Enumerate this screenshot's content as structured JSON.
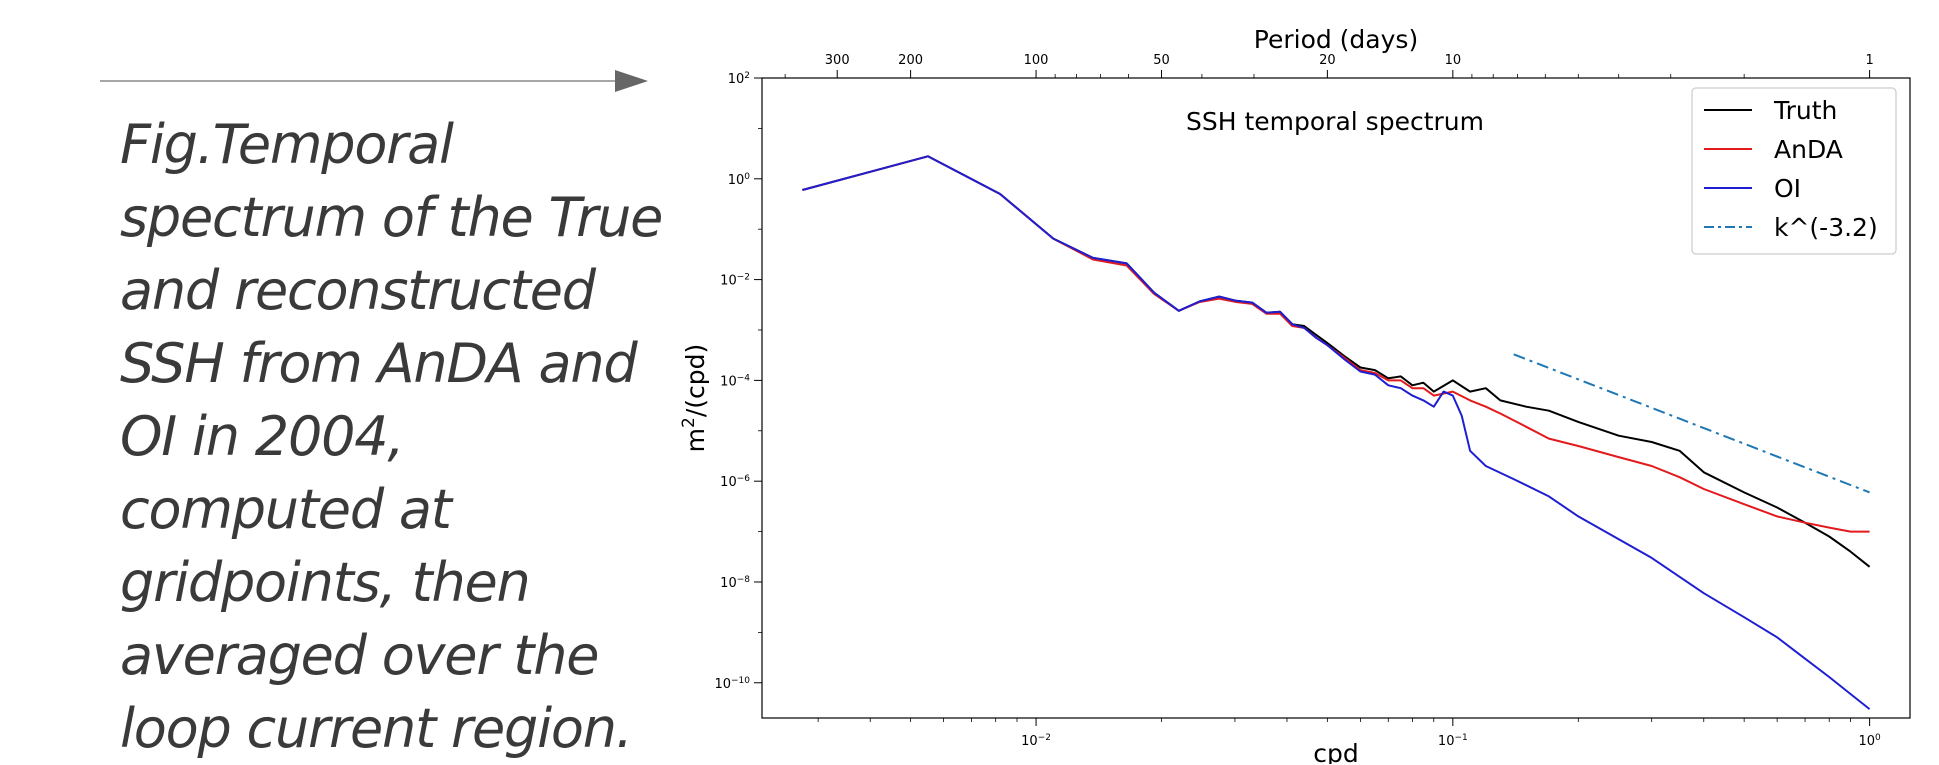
{
  "caption": {
    "text": "Fig.Temporal spectrum of the  True and reconstructed SSH from AnDA and OI  in 2004, computed at gridpoints,  then averaged over the loop current region."
  },
  "chart_data": {
    "type": "line",
    "title": "SSH temporal spectrum",
    "xlabel": "cpd",
    "ylabel": "m²/(cpd)",
    "top_xlabel": "Period (days)",
    "xscale": "log",
    "yscale": "log",
    "xlim": [
      0.0022,
      1.25
    ],
    "ylim": [
      2e-11,
      100
    ],
    "x_ticks": [
      {
        "value": 0.01,
        "label_base": "10",
        "label_exp": "−2"
      },
      {
        "value": 0.1,
        "label_base": "10",
        "label_exp": "−1"
      },
      {
        "value": 1,
        "label_base": "10",
        "label_exp": "0"
      }
    ],
    "y_ticks": [
      {
        "value": 100,
        "label_base": "10",
        "label_exp": "2"
      },
      {
        "value": 1,
        "label_base": "10",
        "label_exp": "0"
      },
      {
        "value": 0.01,
        "label_base": "10",
        "label_exp": "−2"
      },
      {
        "value": 0.0001,
        "label_base": "10",
        "label_exp": "−4"
      },
      {
        "value": 1e-06,
        "label_base": "10",
        "label_exp": "−6"
      },
      {
        "value": 1e-08,
        "label_base": "10",
        "label_exp": "−8"
      },
      {
        "value": 1e-10,
        "label_base": "10",
        "label_exp": "−10"
      }
    ],
    "top_ticks": [
      {
        "period": 300,
        "label": "300"
      },
      {
        "period": 200,
        "label": "200"
      },
      {
        "period": 100,
        "label": "100"
      },
      {
        "period": 50,
        "label": "50"
      },
      {
        "period": 20,
        "label": "20"
      },
      {
        "period": 10,
        "label": "10"
      },
      {
        "period": 1,
        "label": "1"
      }
    ],
    "legend_position": "top-right",
    "grid": false,
    "series": [
      {
        "name": "Truth",
        "color": "#000000",
        "style": "solid",
        "x": [
          0.00275,
          0.0055,
          0.0082,
          0.011,
          0.0137,
          0.0165,
          0.0192,
          0.022,
          0.0247,
          0.0275,
          0.0302,
          0.033,
          0.0357,
          0.0385,
          0.0412,
          0.044,
          0.047,
          0.05,
          0.055,
          0.06,
          0.065,
          0.07,
          0.075,
          0.08,
          0.085,
          0.09,
          0.1,
          0.11,
          0.12,
          0.13,
          0.15,
          0.17,
          0.2,
          0.25,
          0.3,
          0.35,
          0.4,
          0.5,
          0.6,
          0.7,
          0.8,
          0.9,
          1.0
        ],
        "y": [
          0.6,
          2.8,
          0.5,
          0.065,
          0.027,
          0.021,
          0.0055,
          0.0024,
          0.0037,
          0.0046,
          0.0038,
          0.0035,
          0.0022,
          0.0023,
          0.0013,
          0.0012,
          0.0008,
          0.00055,
          0.0003,
          0.00018,
          0.00016,
          0.00011,
          0.00012,
          8e-05,
          9e-05,
          6e-05,
          0.0001,
          6e-05,
          7e-05,
          4e-05,
          3e-05,
          2.5e-05,
          1.5e-05,
          8e-06,
          6e-06,
          4e-06,
          1.5e-06,
          6e-07,
          3e-07,
          1.5e-07,
          8e-08,
          4e-08,
          2e-08
        ]
      },
      {
        "name": "AnDA",
        "color": "#e31a1c",
        "style": "solid",
        "x": [
          0.00275,
          0.0055,
          0.0082,
          0.011,
          0.0137,
          0.0165,
          0.0192,
          0.022,
          0.0247,
          0.0275,
          0.0302,
          0.033,
          0.0357,
          0.0385,
          0.0412,
          0.044,
          0.047,
          0.05,
          0.055,
          0.06,
          0.065,
          0.07,
          0.075,
          0.08,
          0.085,
          0.09,
          0.1,
          0.11,
          0.12,
          0.13,
          0.15,
          0.17,
          0.2,
          0.25,
          0.3,
          0.35,
          0.4,
          0.5,
          0.6,
          0.7,
          0.8,
          0.9,
          1.0
        ],
        "y": [
          0.6,
          2.8,
          0.5,
          0.065,
          0.025,
          0.019,
          0.0052,
          0.0024,
          0.0036,
          0.0042,
          0.0036,
          0.0033,
          0.0021,
          0.0021,
          0.0012,
          0.0011,
          0.0007,
          0.0005,
          0.00028,
          0.00016,
          0.00014,
          0.0001,
          0.0001,
          7e-05,
          7e-05,
          5e-05,
          6e-05,
          4e-05,
          3e-05,
          2.2e-05,
          1.2e-05,
          7e-06,
          5e-06,
          3e-06,
          2e-06,
          1.2e-06,
          7e-07,
          3.5e-07,
          2e-07,
          1.5e-07,
          1.2e-07,
          1e-07,
          1e-07
        ]
      },
      {
        "name": "OI",
        "color": "#1f1fd1",
        "style": "solid",
        "x": [
          0.00275,
          0.0055,
          0.0082,
          0.011,
          0.0137,
          0.0165,
          0.0192,
          0.022,
          0.0247,
          0.0275,
          0.0302,
          0.033,
          0.0357,
          0.0385,
          0.0412,
          0.044,
          0.047,
          0.05,
          0.055,
          0.06,
          0.065,
          0.07,
          0.075,
          0.08,
          0.085,
          0.09,
          0.095,
          0.1,
          0.105,
          0.11,
          0.12,
          0.14,
          0.17,
          0.2,
          0.3,
          0.4,
          0.5,
          0.6,
          0.7,
          0.8,
          0.9,
          1.0
        ],
        "y": [
          0.6,
          2.8,
          0.5,
          0.065,
          0.027,
          0.021,
          0.0055,
          0.0024,
          0.0037,
          0.0046,
          0.0038,
          0.0035,
          0.0022,
          0.0023,
          0.0013,
          0.0011,
          0.0007,
          0.0005,
          0.00026,
          0.00015,
          0.00013,
          8e-05,
          7e-05,
          5e-05,
          4e-05,
          3e-05,
          6e-05,
          5e-05,
          2e-05,
          4e-06,
          2e-06,
          1.1e-06,
          5e-07,
          2e-07,
          3e-08,
          6e-09,
          2e-09,
          8e-10,
          3e-10,
          1.3e-10,
          6e-11,
          3e-11
        ]
      },
      {
        "name": "k^(-3.2)",
        "color": "#1f77b4",
        "style": "dashdot",
        "x": [
          0.14,
          1.0
        ],
        "y": [
          0.00033,
          6e-07
        ]
      }
    ]
  }
}
